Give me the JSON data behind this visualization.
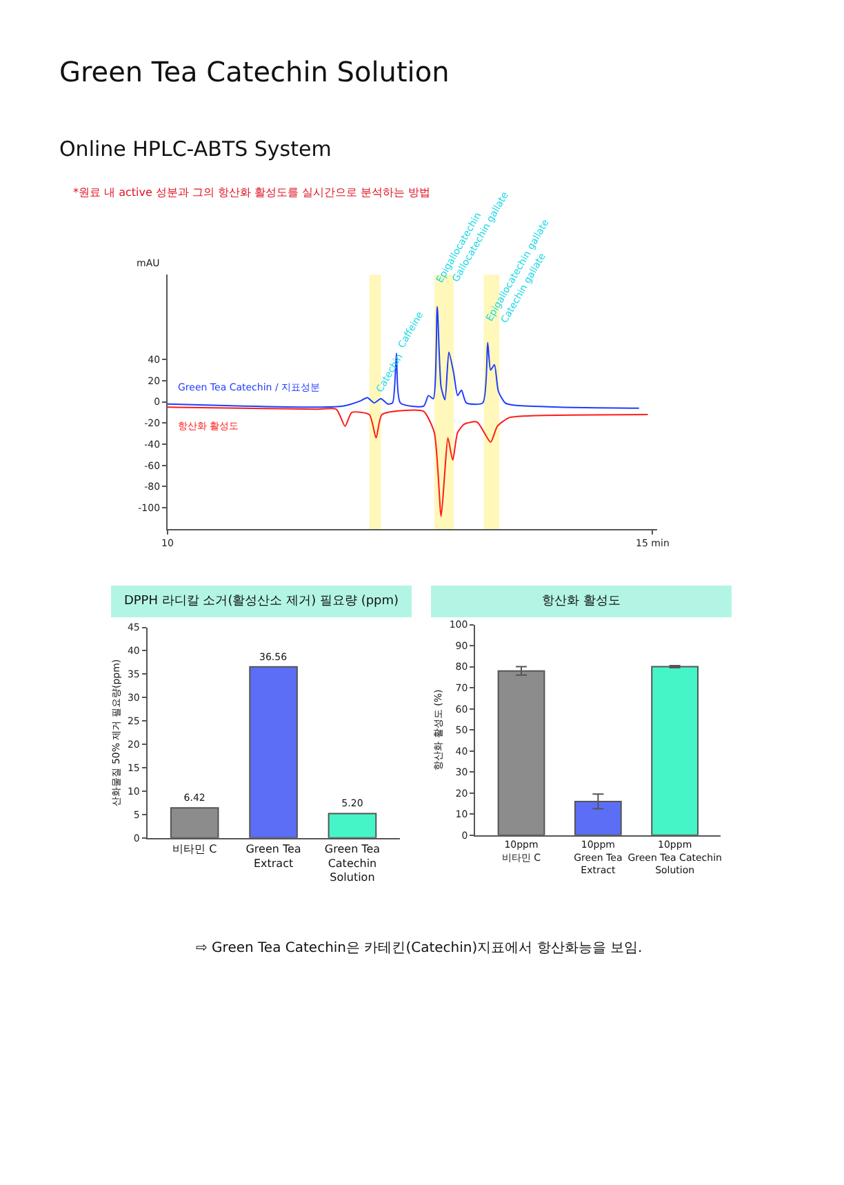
{
  "chart_data": [
    {
      "type": "line",
      "title": "Green Tea Catechin Solution",
      "subtitle": "Online HPLC-ABTS System",
      "ylabel": "mAU",
      "annotations": [
        "*원료 내 active 성분과 그의 항산화 활성도를 실시간으로 분석하는 방법",
        {
          "text": "Catechin",
          "x": 12.14,
          "y": 4
        },
        {
          "text": "Caffeine",
          "x": 12.36,
          "y": 46
        },
        {
          "text": "Epigallocatechin",
          "x": 12.76,
          "y": 107
        },
        {
          "text": "Gallocatechin gallate",
          "x": 12.92,
          "y": 107
        },
        {
          "text": "Epigallocatechin gallate",
          "x": 13.27,
          "y": 70
        },
        {
          "text": "Catechin gallate",
          "x": 13.42,
          "y": 69
        }
      ],
      "xlim": [
        10,
        15.05
      ],
      "xticks": [
        10,
        {
          "value": 15,
          "label": "15 min"
        }
      ],
      "ylim": [
        -120,
        120
      ],
      "yticks": [
        -100,
        -80,
        -60,
        -40,
        -20,
        0,
        20,
        40
      ],
      "bands": [
        {
          "axis": "x",
          "from": 12.08,
          "to": 12.2,
          "color": "#fff59d"
        },
        {
          "axis": "x",
          "from": 12.75,
          "to": 12.95,
          "color": "#fff59d"
        },
        {
          "axis": "x",
          "from": 13.26,
          "to": 13.42,
          "color": "#fff59d"
        }
      ],
      "series": [
        {
          "name": "Green Tea Catechin / 지표성분",
          "color": "#1f3cff",
          "x": [
            10.0,
            10.79,
            11.53,
            11.81,
            11.99,
            12.06,
            12.13,
            12.2,
            12.27,
            12.32,
            12.36,
            12.4,
            12.64,
            12.69,
            12.74,
            12.78,
            12.82,
            12.86,
            12.9,
            12.95,
            12.99,
            13.03,
            13.08,
            13.25,
            13.3,
            13.33,
            13.37,
            13.41,
            13.48,
            13.56,
            14.03,
            14.86
          ],
          "values": [
            -2,
            -4,
            -5,
            -4,
            1,
            4,
            -1,
            3,
            -2,
            -1,
            46,
            -1,
            -4,
            6,
            3,
            90,
            14,
            2,
            47,
            27,
            6,
            11,
            -1,
            -1,
            56,
            30,
            35,
            10,
            -1,
            -3,
            -5,
            -6
          ]
        },
        {
          "name": "항산화 활성도",
          "color": "#ff1a1a",
          "x": [
            10.0,
            11.53,
            11.74,
            11.83,
            11.9,
            12.08,
            12.15,
            12.21,
            12.45,
            12.64,
            12.75,
            12.82,
            12.86,
            12.89,
            12.94,
            12.99,
            13.06,
            13.19,
            13.33,
            13.4,
            13.52,
            13.8,
            14.95
          ],
          "values": [
            -5,
            -7,
            -7,
            -23,
            -10,
            -12,
            -34,
            -12,
            -8,
            -9,
            -29,
            -108,
            -64,
            -34,
            -55,
            -29,
            -21,
            -19,
            -38,
            -23,
            -15,
            -13,
            -12
          ]
        }
      ]
    },
    {
      "type": "bar",
      "title": "DPPH 라디칼 소거(활성산소 제거) 필요량 (ppm)",
      "ylabel": "산화물질 50% 제거 필요량(ppm)",
      "categories": [
        "비타민 C",
        "Green Tea\nExtract",
        "Green Tea\nCatechin\nSolution"
      ],
      "values": [
        6.42,
        36.56,
        5.2
      ],
      "value_labels": [
        "6.42",
        "36.56",
        "5.20"
      ],
      "colors": [
        "#8c8c8c",
        "#5b6ef5",
        "#45f5c8"
      ],
      "ylim": [
        0,
        45
      ],
      "yticks": [
        0,
        5,
        10,
        15,
        20,
        25,
        30,
        35,
        40,
        45
      ]
    },
    {
      "type": "bar",
      "title": "항산화 활성도",
      "ylabel": "항산화 활성도 (%)",
      "categories": [
        "10ppm\n비타민 C",
        "10ppm\nGreen Tea\nExtract",
        "10ppm\nGreen Tea Catechin\nSolution"
      ],
      "values": [
        78,
        16,
        80
      ],
      "errors": [
        2,
        3.5,
        0.5
      ],
      "colors": [
        "#8c8c8c",
        "#5b6ef5",
        "#45f5c8"
      ],
      "ylim": [
        0,
        100
      ],
      "yticks": [
        0,
        10,
        20,
        30,
        40,
        50,
        60,
        70,
        80,
        90,
        100
      ],
      "annotations": [
        "⇨ Green Tea Catechin은 카테킨(Catechin)지표에서 항산화능을 보임."
      ]
    }
  ]
}
